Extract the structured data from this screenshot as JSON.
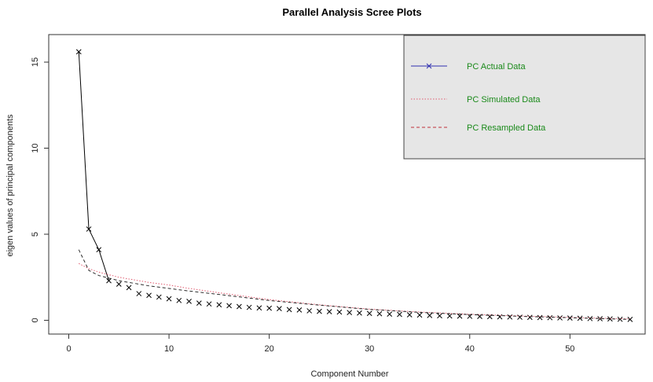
{
  "chart_data": {
    "type": "line",
    "title": "Parallel Analysis Scree Plots",
    "xlabel": "Component Number",
    "ylabel": "eigen values of principal components",
    "xlim": [
      -2,
      57.5
    ],
    "ylim": [
      -0.8,
      16.6
    ],
    "xticks": [
      0,
      10,
      20,
      30,
      40,
      50
    ],
    "yticks": [
      0,
      5,
      10,
      15
    ],
    "legend_position": "top-right",
    "legend_background": "#e6e6e6",
    "series": [
      {
        "name": "PC  Actual Data",
        "style": "solid-line-x-markers",
        "line_color": "#000000",
        "legend_color": "#3030b0",
        "line_until_x": 4,
        "x": [
          1,
          2,
          3,
          4,
          5,
          6,
          7,
          8,
          9,
          10,
          11,
          12,
          13,
          14,
          15,
          16,
          17,
          18,
          19,
          20,
          21,
          22,
          23,
          24,
          25,
          26,
          27,
          28,
          29,
          30,
          31,
          32,
          33,
          34,
          35,
          36,
          37,
          38,
          39,
          40,
          41,
          42,
          43,
          44,
          45,
          46,
          47,
          48,
          49,
          50,
          51,
          52,
          53,
          54,
          55,
          56
        ],
        "values": [
          15.6,
          5.3,
          4.1,
          2.3,
          2.1,
          1.9,
          1.55,
          1.45,
          1.35,
          1.25,
          1.15,
          1.1,
          1.0,
          0.95,
          0.9,
          0.85,
          0.8,
          0.75,
          0.72,
          0.7,
          0.68,
          0.62,
          0.6,
          0.55,
          0.52,
          0.5,
          0.48,
          0.45,
          0.42,
          0.4,
          0.38,
          0.36,
          0.34,
          0.32,
          0.3,
          0.28,
          0.26,
          0.25,
          0.24,
          0.23,
          0.22,
          0.21,
          0.2,
          0.19,
          0.18,
          0.17,
          0.16,
          0.15,
          0.14,
          0.13,
          0.12,
          0.1,
          0.09,
          0.08,
          0.06,
          0.05
        ]
      },
      {
        "name": "PC  Simulated Data",
        "style": "dotted",
        "color": "#e05a6e",
        "legend_color": "#e05a6e",
        "x": [
          1,
          2,
          3,
          4,
          5,
          6,
          7,
          8,
          10,
          12,
          15,
          20,
          25,
          30,
          35,
          40,
          45,
          50,
          53,
          56
        ],
        "values": [
          3.3,
          3.0,
          2.8,
          2.65,
          2.5,
          2.4,
          2.3,
          2.2,
          2.05,
          1.85,
          1.6,
          1.2,
          0.9,
          0.65,
          0.48,
          0.35,
          0.25,
          0.17,
          0.12,
          0.08
        ]
      },
      {
        "name": "PC  Resampled Data",
        "style": "dashed",
        "color": "#2b2b2b",
        "legend_color": "#c0303a",
        "x": [
          1,
          2,
          3,
          4,
          5,
          6,
          7,
          8,
          10,
          12,
          15,
          20,
          25,
          30,
          35,
          40,
          45,
          50,
          53,
          56
        ],
        "values": [
          4.1,
          2.9,
          2.6,
          2.45,
          2.3,
          2.2,
          2.1,
          2.0,
          1.85,
          1.7,
          1.5,
          1.15,
          0.88,
          0.63,
          0.46,
          0.33,
          0.23,
          0.15,
          0.1,
          0.05
        ]
      }
    ]
  }
}
